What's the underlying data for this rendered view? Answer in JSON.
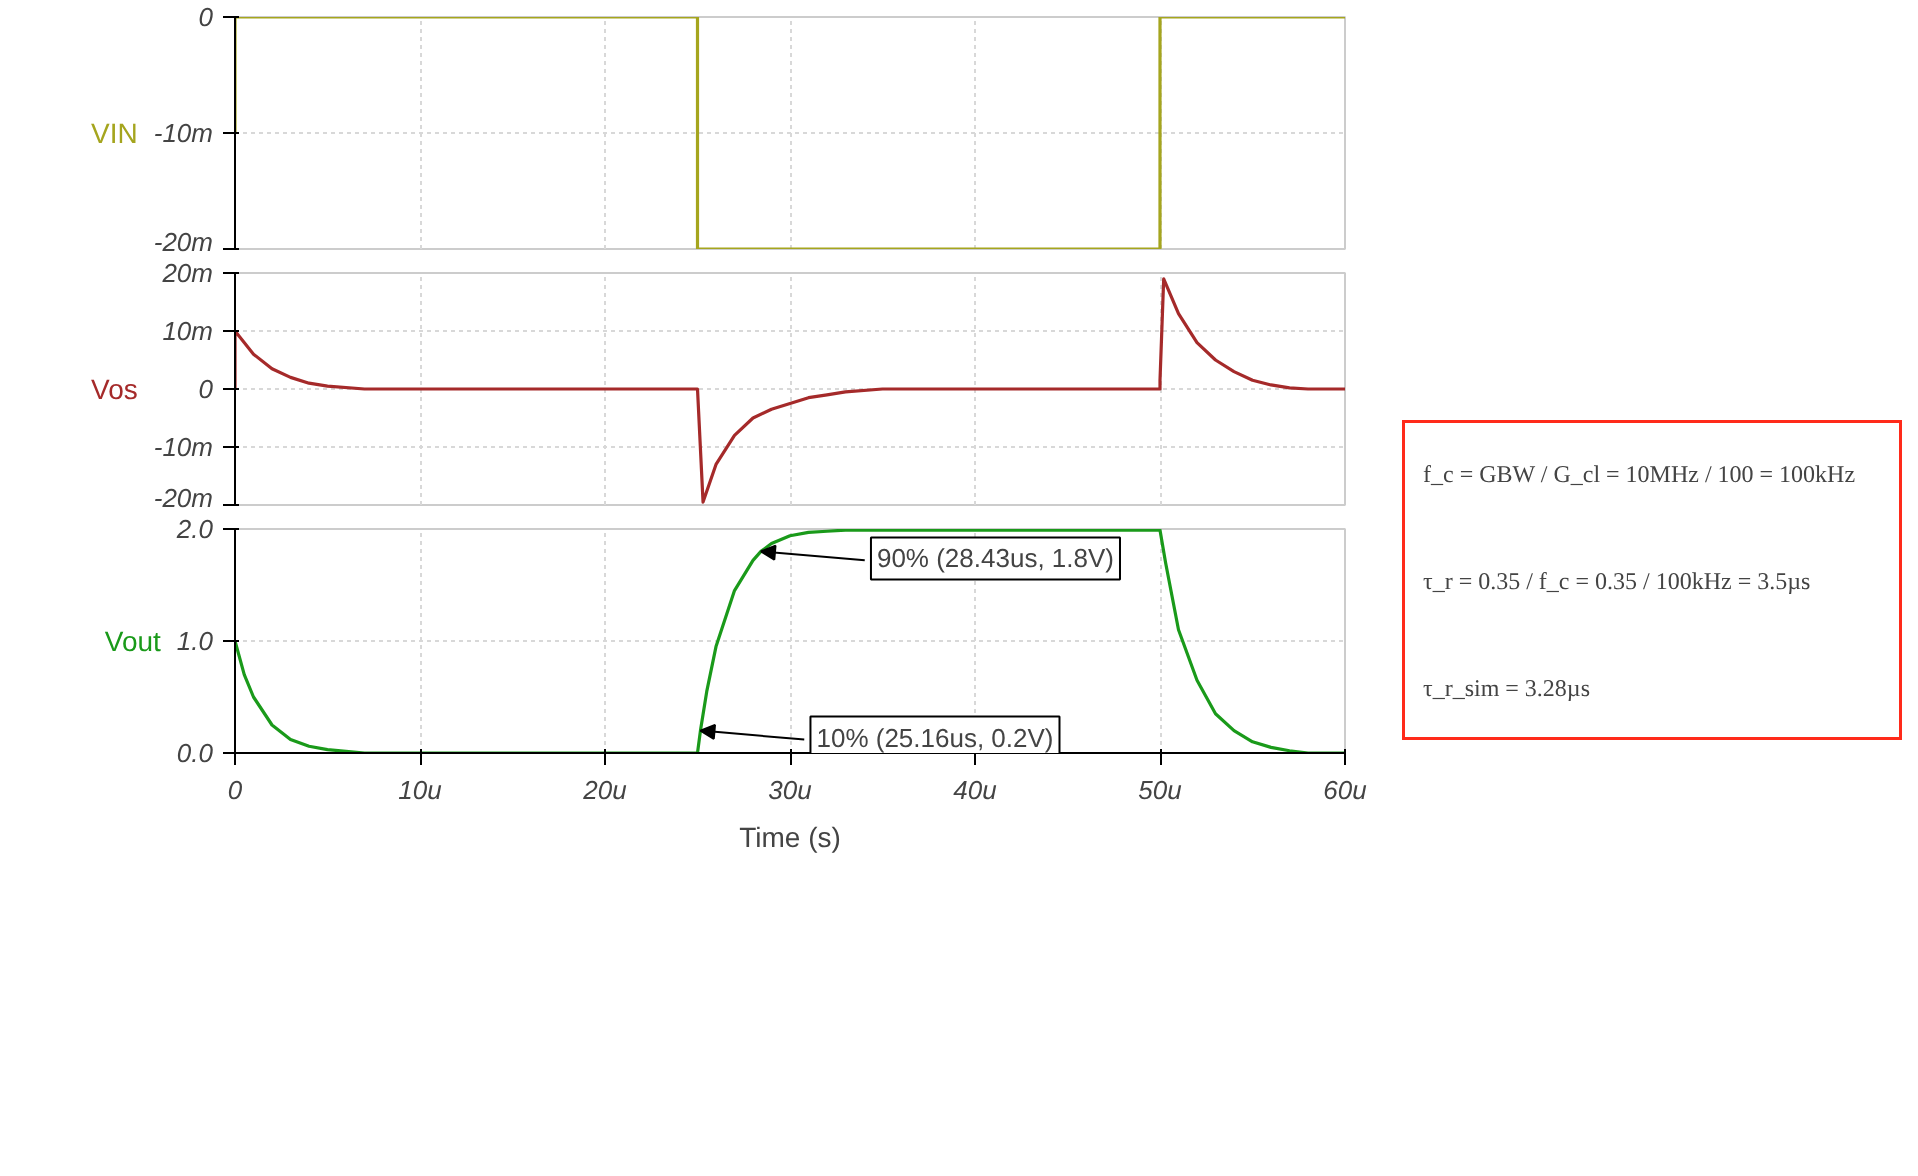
{
  "chart_data": [
    {
      "type": "line",
      "ylabel": "VIN",
      "tick_labels": "y",
      "grid": true,
      "xlim": [
        0,
        60
      ],
      "xticks": [
        0,
        10,
        20,
        30,
        40,
        50,
        60
      ],
      "ylim": [
        -20,
        0
      ],
      "yticks": [
        {
          "value": -20,
          "label": "-20m"
        },
        {
          "value": -10,
          "label": "-10m"
        },
        0
      ],
      "series": [
        {
          "color": "#a5a51e",
          "x": [
            0,
            0,
            25,
            25,
            50,
            50,
            60
          ],
          "values": [
            -10,
            0,
            0,
            -20,
            -20,
            0,
            0
          ]
        }
      ]
    },
    {
      "type": "line",
      "ylabel": "Vos",
      "tick_labels": "y",
      "grid": true,
      "xlim": [
        0,
        60
      ],
      "xticks": [
        0,
        10,
        20,
        30,
        40,
        50,
        60
      ],
      "ylim": [
        -20,
        20
      ],
      "yticks": [
        {
          "value": -20,
          "label": "-20m"
        },
        {
          "value": -10,
          "label": "-10m"
        },
        0,
        {
          "value": 10,
          "label": "10m"
        },
        {
          "value": 20,
          "label": "20m"
        }
      ],
      "series": [
        {
          "color": "#a52a2a",
          "x": [
            0,
            0,
            1,
            2,
            3,
            4,
            5,
            7,
            25,
            25.3,
            26,
            27,
            28,
            29,
            30,
            31,
            32,
            33,
            35,
            50,
            50,
            50.2,
            51,
            52,
            53,
            54,
            55,
            56,
            57,
            58,
            60
          ],
          "values": [
            0,
            10,
            6,
            3.5,
            2,
            1,
            0.5,
            0,
            0,
            -19.5,
            -13,
            -8,
            -5,
            -3.5,
            -2.5,
            -1.5,
            -1,
            -0.5,
            0,
            0,
            1.5,
            19,
            13,
            8,
            5,
            3,
            1.5,
            0.7,
            0.2,
            0,
            0
          ]
        }
      ]
    },
    {
      "type": "line",
      "ylabel": "Vout",
      "xlabel": "Time (s)",
      "grid": true,
      "xlim": [
        0,
        60
      ],
      "xticks": [
        0,
        {
          "value": 10,
          "label": "10u"
        },
        {
          "value": 20,
          "label": "20u"
        },
        {
          "value": 30,
          "label": "30u"
        },
        {
          "value": 40,
          "label": "40u"
        },
        {
          "value": 50,
          "label": "50u"
        },
        {
          "value": 60,
          "label": "60u"
        }
      ],
      "ylim": [
        0,
        2
      ],
      "yticks": [
        {
          "value": 0,
          "label": "0.0"
        },
        {
          "value": 1,
          "label": "1.0"
        },
        {
          "value": 2,
          "label": "2.0"
        }
      ],
      "series": [
        {
          "color": "#1a9a1a",
          "x": [
            0,
            0.5,
            1,
            2,
            3,
            4,
            5,
            7,
            25,
            25.16,
            25.5,
            26,
            27,
            28,
            28.43,
            29,
            30,
            31,
            32,
            33,
            50,
            50.3,
            51,
            52,
            53,
            54,
            55,
            56,
            57,
            58,
            60
          ],
          "values": [
            1.0,
            0.7,
            0.5,
            0.25,
            0.12,
            0.06,
            0.03,
            0,
            0,
            0.2,
            0.55,
            0.95,
            1.45,
            1.72,
            1.8,
            1.87,
            1.94,
            1.97,
            1.98,
            1.99,
            1.99,
            1.7,
            1.1,
            0.65,
            0.35,
            0.2,
            0.1,
            0.05,
            0.02,
            0,
            0
          ]
        }
      ],
      "annotations": [
        {
          "text": "90% (28.43us, 1.8V)",
          "x": 28.43,
          "y": 1.8
        },
        {
          "text": "10% (25.16us, 0.2V)",
          "x": 25.16,
          "y": 0.2
        }
      ]
    },
    {
      "type": "other",
      "color": "#ff2a1a",
      "annotations": [
        "f_c = GBW / G_cl = 10MHz / 100 = 100kHz",
        "τ_r = 0.35 / f_c = 0.35 / 100kHz = 3.5µs",
        "τ_r_sim = 3.28µs"
      ]
    }
  ]
}
